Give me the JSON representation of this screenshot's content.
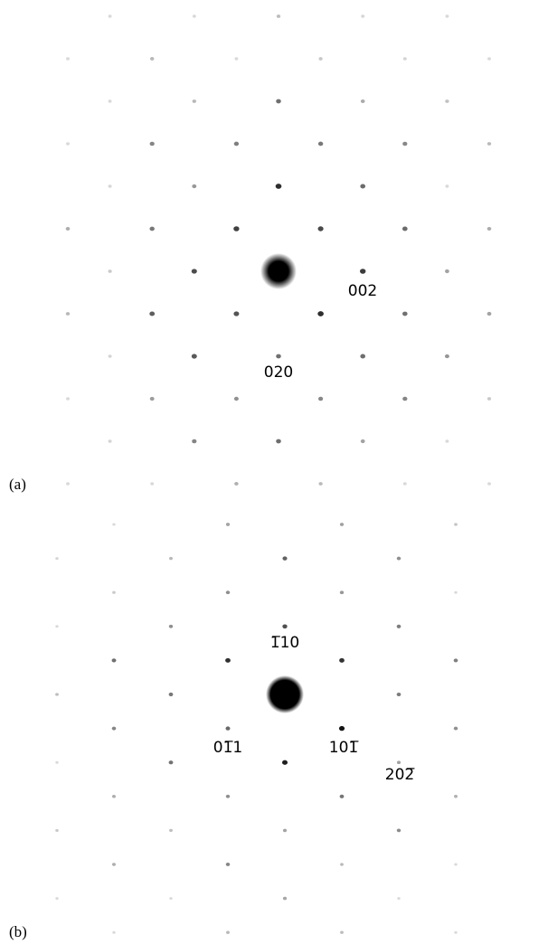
{
  "panels": [
    {
      "label": "(a)",
      "spots": [
        "002",
        "020"
      ]
    },
    {
      "label": "(b)",
      "spots": [
        "1̅10",
        "01̅1",
        "101̅",
        "202̅"
      ]
    }
  ]
}
